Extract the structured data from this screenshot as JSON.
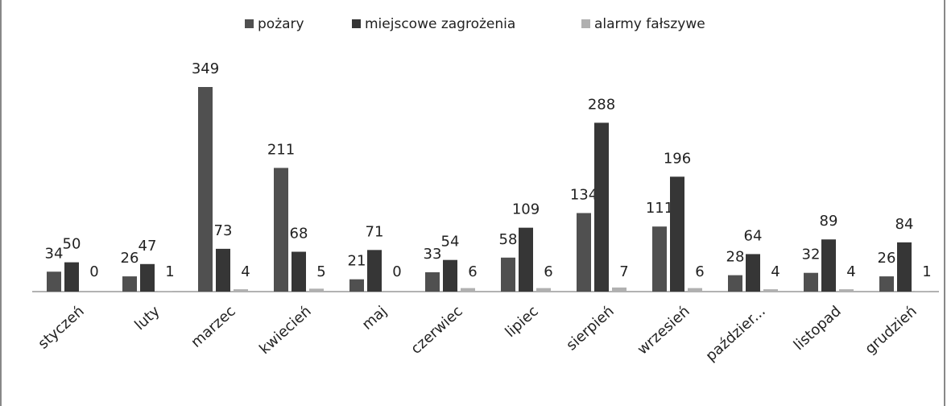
{
  "chart_data": {
    "type": "bar",
    "categories": [
      "styczeń",
      "luty",
      "marzec",
      "kwiecień",
      "maj",
      "czerwiec",
      "lipiec",
      "sierpień",
      "wrzesień",
      "paździer...",
      "listopad",
      "grudzień"
    ],
    "series": [
      {
        "name": "pożary",
        "color": "#505050",
        "values": [
          34,
          26,
          349,
          211,
          21,
          33,
          58,
          134,
          111,
          28,
          32,
          26
        ]
      },
      {
        "name": "miejscowe zagrożenia",
        "color": "#363636",
        "values": [
          50,
          47,
          73,
          68,
          71,
          54,
          109,
          288,
          196,
          64,
          89,
          84
        ]
      },
      {
        "name": "alarmy fałszywe",
        "color": "#b0b0b0",
        "values": [
          0,
          1,
          4,
          5,
          0,
          6,
          6,
          7,
          6,
          4,
          4,
          1
        ]
      }
    ],
    "legend": "top"
  }
}
